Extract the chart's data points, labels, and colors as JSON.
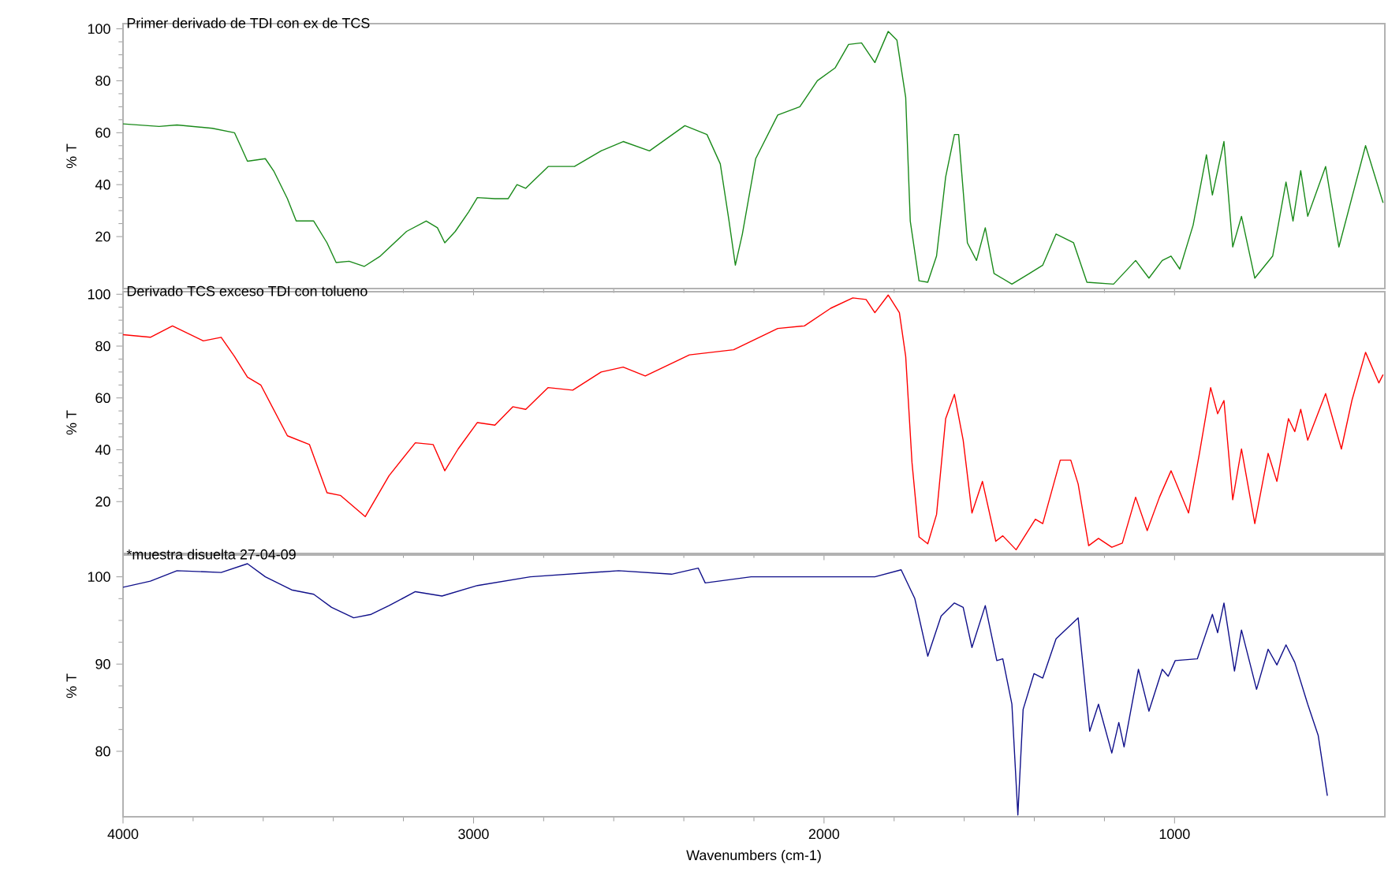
{
  "chart_data": [
    {
      "type": "line",
      "title": "Primer derivado de TDI con ex de TCS",
      "ylabel": "% T",
      "color": "#1a8a1a",
      "tick_labels": "y",
      "xlim": [
        4000,
        400
      ],
      "ylim": [
        0,
        102
      ],
      "xticks": [
        4000,
        3000,
        2000,
        1000
      ],
      "yticks": [
        20,
        40,
        60,
        80,
        100
      ],
      "x": [
        4000,
        3897,
        3846,
        3745,
        3682,
        3665,
        3645,
        3594,
        3569,
        3531,
        3506,
        3456,
        3418,
        3392,
        3355,
        3312,
        3266,
        3191,
        3135,
        3103,
        3082,
        3052,
        3014,
        2989,
        2939,
        2901,
        2876,
        2851,
        2787,
        2712,
        2636,
        2573,
        2498,
        2397,
        2334,
        2296,
        2271,
        2253,
        2233,
        2195,
        2132,
        2069,
        2019,
        1968,
        1930,
        1893,
        1855,
        1817,
        1792,
        1767,
        1754,
        1729,
        1704,
        1679,
        1653,
        1628,
        1616,
        1591,
        1565,
        1540,
        1515,
        1464,
        1414,
        1376,
        1338,
        1288,
        1250,
        1174,
        1111,
        1073,
        1035,
        1010,
        985,
        947,
        909,
        892,
        859,
        834,
        809,
        771,
        720,
        682,
        662,
        640,
        620,
        569,
        531,
        455,
        405
      ],
      "values": [
        63.4,
        62.4,
        63,
        61.7,
        60,
        55,
        49,
        50,
        45,
        34.6,
        26,
        26,
        17.6,
        10,
        10.5,
        8.5,
        12.5,
        22,
        26,
        23.4,
        17.6,
        22,
        29.5,
        35,
        34.6,
        34.6,
        40,
        38.6,
        47,
        47,
        53,
        56.6,
        53,
        62.7,
        59.3,
        48,
        26,
        9,
        21,
        50,
        66.8,
        70,
        80,
        85,
        94,
        94.6,
        87,
        99,
        95.6,
        73.6,
        26,
        3,
        2.4,
        12.5,
        43,
        59.3,
        59.3,
        17.6,
        10.8,
        23.4,
        5.8,
        1.7,
        5.8,
        9,
        21,
        17.6,
        2.4,
        1.7,
        10.8,
        4,
        10.8,
        12.5,
        7.5,
        24.4,
        51.5,
        36,
        56.6,
        16,
        27.8,
        4,
        12.5,
        41,
        26,
        45.4,
        27.8,
        47,
        16,
        55,
        33
      ]
    },
    {
      "type": "line",
      "title": "Derivado TCS exceso TDI con tolueno",
      "ylabel": "% T",
      "color": "#ff0000",
      "tick_labels": "y",
      "xlim": [
        4000,
        400
      ],
      "ylim": [
        0,
        101
      ],
      "xticks": [
        4000,
        3000,
        2000,
        1000
      ],
      "yticks": [
        20,
        40,
        60,
        80,
        100
      ],
      "x": [
        4000,
        3922,
        3859,
        3771,
        3720,
        3682,
        3645,
        3607,
        3531,
        3468,
        3418,
        3380,
        3309,
        3241,
        3166,
        3115,
        3082,
        3044,
        2989,
        2939,
        2888,
        2851,
        2787,
        2717,
        2636,
        2573,
        2510,
        2384,
        2258,
        2132,
        2056,
        1981,
        1918,
        1880,
        1855,
        1817,
        1785,
        1767,
        1749,
        1729,
        1704,
        1679,
        1653,
        1628,
        1603,
        1578,
        1548,
        1510,
        1490,
        1452,
        1397,
        1376,
        1326,
        1296,
        1275,
        1245,
        1217,
        1179,
        1149,
        1111,
        1078,
        1043,
        1010,
        960,
        929,
        897,
        877,
        859,
        834,
        809,
        771,
        733,
        708,
        675,
        657,
        640,
        620,
        569,
        524,
        494,
        455,
        417,
        405
      ],
      "values": [
        84.4,
        83.4,
        87.8,
        82,
        83.4,
        76,
        68,
        65,
        45.4,
        42,
        23.4,
        22.4,
        14.2,
        30,
        42.7,
        42,
        31.9,
        40.3,
        50.5,
        49.5,
        56.6,
        55.6,
        64,
        63,
        70,
        71.9,
        68.5,
        76.6,
        78.6,
        86.8,
        87.8,
        94.6,
        98.6,
        98,
        92.9,
        99.7,
        92.9,
        76,
        35,
        6.4,
        3.7,
        15,
        52,
        61.4,
        43.7,
        15.6,
        27.8,
        4.7,
        6.8,
        1.4,
        13.2,
        11.5,
        36,
        36,
        26.8,
        3,
        5.8,
        2.4,
        4,
        21.7,
        8.8,
        21.7,
        31.9,
        15.6,
        38.6,
        64,
        53.9,
        59,
        20.7,
        40.3,
        11.5,
        38.6,
        27.8,
        52,
        47,
        55.6,
        43.7,
        61.7,
        40.3,
        59,
        77.6,
        65.8,
        69
      ]
    },
    {
      "type": "line",
      "title": "*muestra disuelta 27-04-09",
      "ylabel": "% T",
      "xlabel": "Wavenumbers (cm-1)",
      "color": "#10108a",
      "xlim": [
        4000,
        400
      ],
      "ylim": [
        72.5,
        102.5
      ],
      "xticks": [
        4000,
        3000,
        2000,
        1000
      ],
      "yticks": [
        80,
        90,
        100
      ],
      "x": [
        4000,
        3922,
        3846,
        3720,
        3645,
        3594,
        3519,
        3456,
        3405,
        3342,
        3292,
        3241,
        3166,
        3090,
        2989,
        2838,
        2586,
        2435,
        2359,
        2339,
        2208,
        1956,
        1855,
        1780,
        1741,
        1704,
        1666,
        1628,
        1603,
        1578,
        1540,
        1507,
        1490,
        1464,
        1447,
        1432,
        1401,
        1376,
        1338,
        1275,
        1242,
        1217,
        1179,
        1159,
        1144,
        1103,
        1073,
        1035,
        1018,
        998,
        935,
        892,
        877,
        859,
        829,
        809,
        766,
        733,
        708,
        682,
        657,
        620,
        590,
        564
      ],
      "values": [
        98.8,
        99.5,
        100.7,
        100.5,
        101.5,
        100,
        98.5,
        98,
        96.5,
        95.3,
        95.7,
        96.7,
        98.3,
        97.8,
        99,
        100,
        100.7,
        100.3,
        101,
        99.3,
        100,
        100,
        100,
        100.8,
        97.5,
        90.9,
        95.5,
        97,
        96.5,
        91.9,
        96.7,
        90.4,
        90.6,
        85.4,
        72.7,
        84.8,
        88.9,
        88.4,
        92.9,
        95.3,
        82.3,
        85.4,
        79.8,
        83.3,
        80.5,
        89.4,
        84.6,
        89.4,
        88.6,
        90.4,
        90.6,
        95.7,
        93.6,
        97,
        89.2,
        93.9,
        87.1,
        91.7,
        89.9,
        92.2,
        90.2,
        85.4,
        81.8,
        74.9
      ]
    }
  ]
}
